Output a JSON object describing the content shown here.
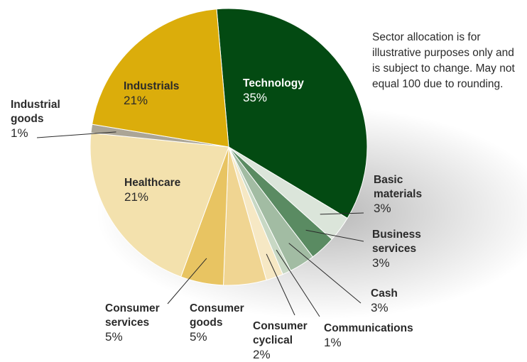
{
  "note": "Sector allocation is for illustrative purposes only and is subject to change. May not equal 100 due to rounding.",
  "colors": {
    "technology": "#034a12",
    "basic_materials": "#dbe5da",
    "business_services": "#5a8b62",
    "cash": "#a2bca3",
    "communications": "#c8d8c4",
    "consumer_cyclical": "#f6e8c4",
    "consumer_goods": "#f0d592",
    "consumer_services": "#e8c462",
    "healthcare": "#f3e1ad",
    "industrial_goods": "#aba596",
    "industrials": "#dbad0b"
  },
  "chart_data": {
    "type": "pie",
    "title": "",
    "slices": [
      {
        "name": "Technology",
        "label": "Technology",
        "value": 35,
        "value_label": "35%"
      },
      {
        "name": "Basic materials",
        "label": "Basic materials",
        "value": 3,
        "value_label": "3%"
      },
      {
        "name": "Business services",
        "label": "Business services",
        "value": 3,
        "value_label": "3%"
      },
      {
        "name": "Cash",
        "label": "Cash",
        "value": 3,
        "value_label": "3%"
      },
      {
        "name": "Communications",
        "label": "Communications",
        "value": 1,
        "value_label": "1%"
      },
      {
        "name": "Consumer cyclical",
        "label": "Consumer cyclical",
        "value": 2,
        "value_label": "2%"
      },
      {
        "name": "Consumer goods",
        "label": "Consumer goods",
        "value": 5,
        "value_label": "5%"
      },
      {
        "name": "Consumer services",
        "label": "Consumer services",
        "value": 5,
        "value_label": "5%"
      },
      {
        "name": "Healthcare",
        "label": "Healthcare",
        "value": 21,
        "value_label": "21%"
      },
      {
        "name": "Industrial goods",
        "label": "Industrial goods",
        "value": 1,
        "value_label": "1%"
      },
      {
        "name": "Industrials",
        "label": "Industrials",
        "value": 21,
        "value_label": "21%"
      }
    ]
  }
}
